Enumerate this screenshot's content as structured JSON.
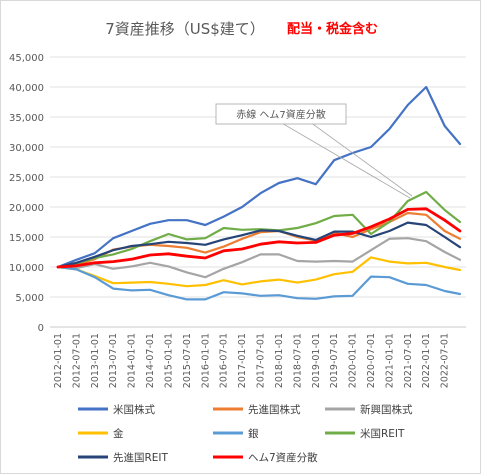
{
  "chart_data": {
    "type": "line",
    "title": "7資産推移（US$建て）",
    "subtitle": "配当・税金含む",
    "annotation": "赤線 ヘム7資産分散",
    "ylim": [
      0,
      45000
    ],
    "yticks": [
      "0",
      "5,000",
      "10,000",
      "15,000",
      "20,000",
      "25,000",
      "30,000",
      "35,000",
      "40,000",
      "45,000"
    ],
    "ytick_values": [
      0,
      5000,
      10000,
      15000,
      20000,
      25000,
      30000,
      35000,
      40000,
      45000
    ],
    "x_labels": [
      "2012-01-01",
      "2012-07-01",
      "2013-01-01",
      "2013-07-01",
      "2014-01-01",
      "2014-07-01",
      "2015-01-01",
      "2015-07-01",
      "2016-01-01",
      "2016-07-01",
      "2017-01-01",
      "2017-07-01",
      "2018-01-01",
      "2018-07-01",
      "2019-01-01",
      "2019-07-01",
      "2020-01-01",
      "2020-07-01",
      "2021-01-01",
      "2021-07-01",
      "2022-01-01",
      "2022-07-01"
    ],
    "x_months": [
      "2012-01",
      "2012-07",
      "2013-01",
      "2013-07",
      "2014-01",
      "2014-07",
      "2015-01",
      "2015-07",
      "2016-01",
      "2016-07",
      "2017-01",
      "2017-07",
      "2018-01",
      "2018-07",
      "2019-01",
      "2019-07",
      "2020-01",
      "2020-07",
      "2021-01",
      "2021-07",
      "2022-01",
      "2022-07",
      "2022-12"
    ],
    "grid": "horizontal",
    "legend_position": "bottom",
    "series": [
      {
        "name": "米国株式",
        "color": "#4472C4",
        "values": [
          10000,
          11200,
          12300,
          14800,
          16000,
          17200,
          17800,
          17800,
          17000,
          18400,
          20000,
          22300,
          24000,
          24800,
          23800,
          27800,
          29000,
          30000,
          33000,
          37000,
          40000,
          33500,
          30500
        ]
      },
      {
        "name": "先進国株式",
        "color": "#ED7D31",
        "values": [
          10000,
          10400,
          11300,
          12900,
          13400,
          13700,
          13500,
          13200,
          12400,
          13400,
          14700,
          15800,
          16000,
          15000,
          14400,
          15700,
          15000,
          16300,
          17500,
          19000,
          18700,
          16000,
          14700
        ]
      },
      {
        "name": "新興国株式",
        "color": "#A5A5A5",
        "values": [
          10000,
          9800,
          10500,
          9700,
          10100,
          10700,
          10100,
          9100,
          8300,
          9700,
          10800,
          12100,
          12100,
          11000,
          10900,
          11000,
          10900,
          12800,
          14700,
          14800,
          14300,
          12500,
          11200
        ]
      },
      {
        "name": "金",
        "color": "#FFC000",
        "values": [
          10000,
          9600,
          8500,
          7300,
          7400,
          7500,
          7200,
          6800,
          7000,
          7800,
          7100,
          7600,
          7900,
          7400,
          7900,
          8800,
          9200,
          11600,
          10900,
          10600,
          10700,
          10000,
          9500
        ]
      },
      {
        "name": "銀",
        "color": "#5B9BD5",
        "values": [
          10000,
          9600,
          8300,
          6400,
          6100,
          6200,
          5300,
          4600,
          4600,
          5800,
          5600,
          5200,
          5300,
          4800,
          4700,
          5100,
          5200,
          8400,
          8300,
          7200,
          7000,
          6000,
          5500
        ]
      },
      {
        "name": "米国REIT",
        "color": "#70AD47",
        "values": [
          10000,
          10600,
          11500,
          12100,
          13000,
          14300,
          15500,
          14600,
          14800,
          16500,
          16200,
          16300,
          16100,
          16500,
          17300,
          18500,
          18700,
          15500,
          17500,
          21000,
          22500,
          19500,
          17500
        ]
      },
      {
        "name": "先進国REIT",
        "color": "#264478",
        "values": [
          10000,
          10700,
          11700,
          12800,
          13500,
          13800,
          14200,
          14000,
          13700,
          14600,
          15300,
          16100,
          16000,
          15200,
          14500,
          15900,
          15900,
          15000,
          16000,
          17400,
          17000,
          15000,
          13300
        ]
      },
      {
        "name": "ヘム7資産分散",
        "color": "#FF0000",
        "values": [
          10000,
          10200,
          10700,
          10900,
          11300,
          12000,
          12200,
          11800,
          11500,
          12700,
          13000,
          13800,
          14200,
          14000,
          14100,
          15300,
          15600,
          16700,
          18000,
          19600,
          19700,
          17800,
          16000
        ]
      }
    ]
  }
}
